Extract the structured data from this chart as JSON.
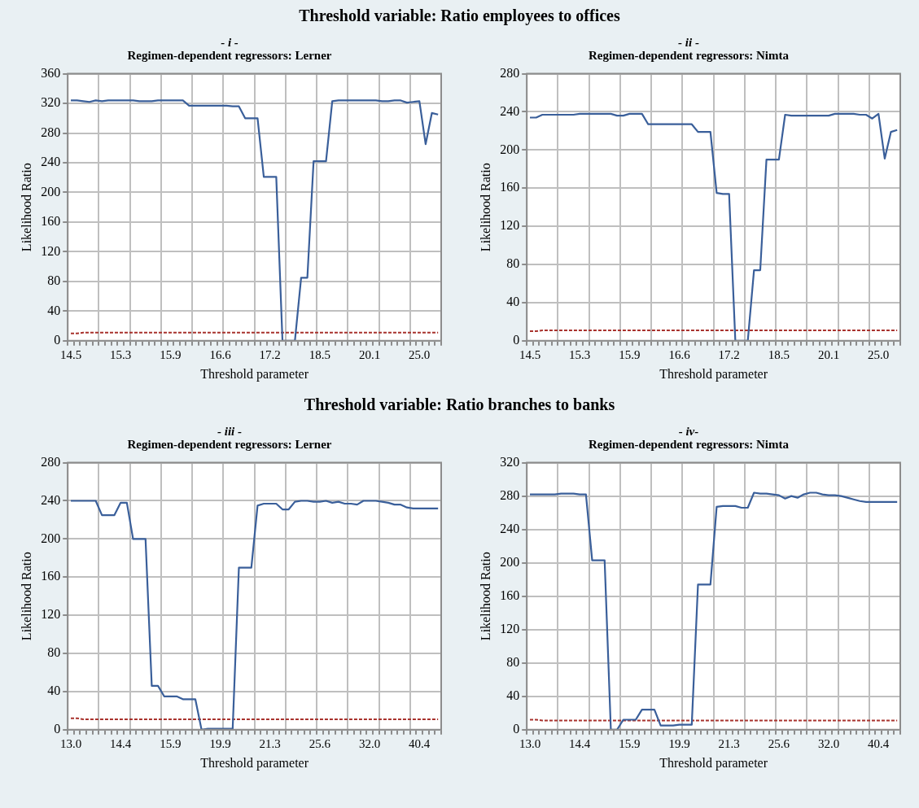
{
  "chart_data": [
    {
      "type": "line",
      "annotations": [
        "Threshold variable: Ratio employees to offices"
      ],
      "title": "- i -",
      "subtitle": "Regimen-dependent regressors: Lerner",
      "xlabel": "Threshold parameter",
      "ylabel": "Likelihood Ratio",
      "categories": [
        "14.5",
        null,
        null,
        null,
        null,
        null,
        null,
        null,
        "15.3",
        null,
        null,
        null,
        null,
        null,
        null,
        null,
        "15.9",
        null,
        null,
        null,
        null,
        null,
        null,
        null,
        "16.6",
        null,
        null,
        null,
        null,
        null,
        null,
        null,
        "17.2",
        null,
        null,
        null,
        null,
        null,
        null,
        null,
        "18.5",
        null,
        null,
        null,
        null,
        null,
        null,
        null,
        "20.1",
        null,
        null,
        null,
        null,
        null,
        null,
        null,
        "25.0",
        null,
        null,
        null
      ],
      "series": [
        {
          "color": "#3a5f9a",
          "line_style": "solid",
          "values": [
            324,
            324,
            323,
            322,
            324,
            323,
            324,
            324,
            324,
            324,
            324,
            323,
            323,
            323,
            324,
            324,
            324,
            324,
            324,
            317,
            317,
            317,
            317,
            317,
            317,
            317,
            316,
            316,
            300,
            300,
            300,
            221,
            221,
            221,
            0,
            0,
            0,
            85,
            85,
            242,
            242,
            242,
            323,
            324,
            324,
            324,
            324,
            324,
            324,
            324,
            323,
            323,
            324,
            324,
            321,
            322,
            323,
            265,
            307,
            305
          ]
        },
        {
          "color": "#a8322d",
          "line_style": "dashed",
          "values": [
            10,
            10,
            11,
            11,
            11,
            11,
            11,
            11,
            11,
            11,
            11,
            11,
            11,
            11,
            11,
            11,
            11,
            11,
            11,
            11,
            11,
            11,
            11,
            11,
            11,
            11,
            11,
            11,
            11,
            11,
            11,
            11,
            11,
            11,
            11,
            11,
            11,
            11,
            11,
            11,
            11,
            11,
            11,
            11,
            11,
            11,
            11,
            11,
            11,
            11,
            11,
            11,
            11,
            11,
            11,
            11,
            11,
            11,
            11,
            11
          ]
        }
      ],
      "ylim": [
        0,
        360
      ],
      "yticks": [
        0,
        40,
        80,
        120,
        160,
        200,
        240,
        280,
        320,
        360
      ],
      "grid": true,
      "marker": "none"
    },
    {
      "type": "line",
      "title": "- ii -",
      "subtitle": "Regimen-dependent regressors: Nimta",
      "xlabel": "Threshold parameter",
      "ylabel": "Likelihood Ratio",
      "categories": [
        "14.5",
        null,
        null,
        null,
        null,
        null,
        null,
        null,
        "15.3",
        null,
        null,
        null,
        null,
        null,
        null,
        null,
        "15.9",
        null,
        null,
        null,
        null,
        null,
        null,
        null,
        "16.6",
        null,
        null,
        null,
        null,
        null,
        null,
        null,
        "17.2",
        null,
        null,
        null,
        null,
        null,
        null,
        null,
        "18.5",
        null,
        null,
        null,
        null,
        null,
        null,
        null,
        "20.1",
        null,
        null,
        null,
        null,
        null,
        null,
        null,
        "25.0",
        null,
        null,
        null
      ],
      "series": [
        {
          "color": "#3a5f9a",
          "line_style": "solid",
          "values": [
            234,
            234,
            237,
            237,
            237,
            237,
            237,
            237,
            238,
            238,
            238,
            238,
            238,
            238,
            236,
            236,
            238,
            238,
            238,
            227,
            227,
            227,
            227,
            227,
            227,
            227,
            227,
            219,
            219,
            219,
            155,
            154,
            154,
            0,
            0,
            0,
            74,
            74,
            190,
            190,
            190,
            237,
            236,
            236,
            236,
            236,
            236,
            236,
            236,
            238,
            238,
            238,
            238,
            237,
            237,
            233,
            238,
            191,
            219,
            221
          ]
        },
        {
          "color": "#a8322d",
          "line_style": "dashed",
          "values": [
            10,
            10,
            11,
            11,
            11,
            11,
            11,
            11,
            11,
            11,
            11,
            11,
            11,
            11,
            11,
            11,
            11,
            11,
            11,
            11,
            11,
            11,
            11,
            11,
            11,
            11,
            11,
            11,
            11,
            11,
            11,
            11,
            11,
            11,
            11,
            11,
            11,
            11,
            11,
            11,
            11,
            11,
            11,
            11,
            11,
            11,
            11,
            11,
            11,
            11,
            11,
            11,
            11,
            11,
            11,
            11,
            11,
            11,
            11,
            11
          ]
        }
      ],
      "ylim": [
        0,
        280
      ],
      "yticks": [
        0,
        40,
        80,
        120,
        160,
        200,
        240,
        280
      ],
      "grid": true,
      "marker": "none"
    },
    {
      "type": "line",
      "annotations": [
        "Threshold variable: Ratio branches to banks"
      ],
      "title": "- iii -",
      "subtitle": "Regimen-dependent regressors: Lerner",
      "xlabel": "Threshold parameter",
      "ylabel": "Likelihood Ratio",
      "categories": [
        "13.0",
        null,
        null,
        null,
        null,
        null,
        null,
        null,
        "14.4",
        null,
        null,
        null,
        null,
        null,
        null,
        null,
        "15.9",
        null,
        null,
        null,
        null,
        null,
        null,
        null,
        "19.9",
        null,
        null,
        null,
        null,
        null,
        null,
        null,
        "21.3",
        null,
        null,
        null,
        null,
        null,
        null,
        null,
        "25.6",
        null,
        null,
        null,
        null,
        null,
        null,
        null,
        "32.0",
        null,
        null,
        null,
        null,
        null,
        null,
        null,
        "40.4",
        null,
        null,
        null
      ],
      "series": [
        {
          "color": "#3a5f9a",
          "line_style": "solid",
          "values": [
            240,
            240,
            240,
            240,
            240,
            225,
            225,
            225,
            238,
            238,
            200,
            200,
            200,
            46,
            46,
            35,
            35,
            35,
            32,
            32,
            32,
            0,
            1,
            1,
            1,
            1,
            1,
            170,
            170,
            170,
            235,
            237,
            237,
            237,
            231,
            231,
            239,
            240,
            240,
            239,
            239,
            240,
            238,
            239,
            237,
            237,
            236,
            240,
            240,
            240,
            239,
            238,
            236,
            236,
            233,
            232,
            232,
            232,
            232,
            232
          ]
        },
        {
          "color": "#a8322d",
          "line_style": "dashed",
          "values": [
            12,
            12,
            11,
            11,
            11,
            11,
            11,
            11,
            11,
            11,
            11,
            11,
            11,
            11,
            11,
            11,
            11,
            11,
            11,
            11,
            11,
            11,
            11,
            11,
            11,
            11,
            11,
            11,
            11,
            11,
            11,
            11,
            11,
            11,
            11,
            11,
            11,
            11,
            11,
            11,
            11,
            11,
            11,
            11,
            11,
            11,
            11,
            11,
            11,
            11,
            11,
            11,
            11,
            11,
            11,
            11,
            11,
            11,
            11,
            11
          ]
        }
      ],
      "ylim": [
        0,
        280
      ],
      "yticks": [
        0,
        40,
        80,
        120,
        160,
        200,
        240,
        280
      ],
      "grid": true,
      "marker": "none"
    },
    {
      "type": "line",
      "title": "- iv-",
      "subtitle": "Regimen-dependent regressors: Nimta",
      "xlabel": "Threshold parameter",
      "ylabel": "Likelihood Ratio",
      "categories": [
        "13.0",
        null,
        null,
        null,
        null,
        null,
        null,
        null,
        "14.4",
        null,
        null,
        null,
        null,
        null,
        null,
        null,
        "15.9",
        null,
        null,
        null,
        null,
        null,
        null,
        null,
        "19.9",
        null,
        null,
        null,
        null,
        null,
        null,
        null,
        "21.3",
        null,
        null,
        null,
        null,
        null,
        null,
        null,
        "25.6",
        null,
        null,
        null,
        null,
        null,
        null,
        null,
        "32.0",
        null,
        null,
        null,
        null,
        null,
        null,
        null,
        "40.4",
        null,
        null,
        null
      ],
      "series": [
        {
          "color": "#3a5f9a",
          "line_style": "solid",
          "values": [
            282,
            282,
            282,
            282,
            282,
            283,
            283,
            283,
            282,
            282,
            203,
            203,
            203,
            0,
            0,
            12,
            12,
            12,
            24,
            24,
            24,
            5,
            5,
            5,
            6,
            6,
            6,
            174,
            174,
            174,
            267,
            268,
            268,
            268,
            266,
            266,
            284,
            283,
            283,
            282,
            281,
            277,
            280,
            278,
            282,
            284,
            284,
            282,
            281,
            281,
            280,
            278,
            276,
            274,
            273,
            273,
            273,
            273,
            273,
            273
          ]
        },
        {
          "color": "#a8322d",
          "line_style": "dashed",
          "values": [
            12,
            12,
            11,
            11,
            11,
            11,
            11,
            11,
            11,
            11,
            11,
            11,
            11,
            11,
            11,
            11,
            11,
            11,
            11,
            11,
            11,
            11,
            11,
            11,
            11,
            11,
            11,
            11,
            11,
            11,
            11,
            11,
            11,
            11,
            11,
            11,
            11,
            11,
            11,
            11,
            11,
            11,
            11,
            11,
            11,
            11,
            11,
            11,
            11,
            11,
            11,
            11,
            11,
            11,
            11,
            11,
            11,
            11,
            11,
            11
          ]
        }
      ],
      "ylim": [
        0,
        320
      ],
      "yticks": [
        0,
        40,
        80,
        120,
        160,
        200,
        240,
        280,
        320
      ],
      "grid": true,
      "marker": "none"
    }
  ]
}
